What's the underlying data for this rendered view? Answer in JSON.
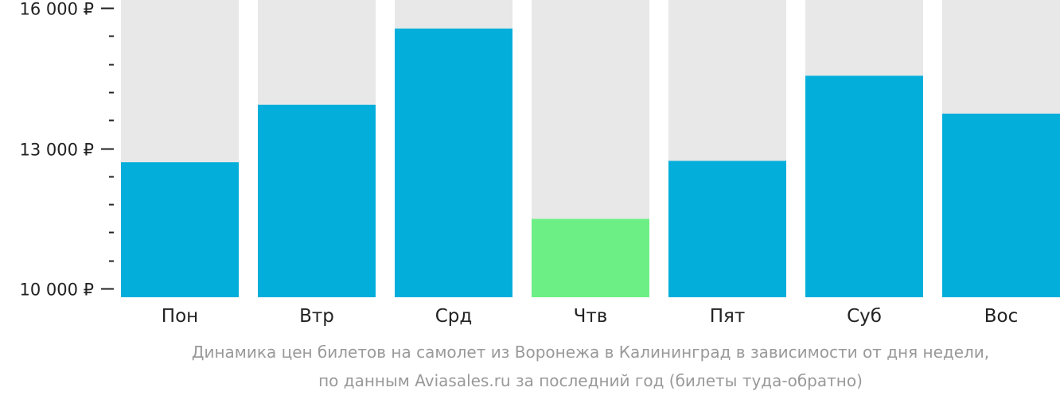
{
  "chart_data": {
    "type": "bar",
    "categories": [
      "Пон",
      "Втр",
      "Срд",
      "Чтв",
      "Пят",
      "Суб",
      "Вос"
    ],
    "values": [
      12700,
      13930,
      15560,
      11490,
      12730,
      14550,
      13740
    ],
    "highlight_index": 3,
    "yticks": [
      {
        "value": 10000,
        "label": "10 000 ₽"
      },
      {
        "value": 13000,
        "label": "13 000 ₽"
      },
      {
        "value": 16000,
        "label": "16 000 ₽"
      }
    ],
    "minor_tick_step": 600,
    "ylim": [
      9850,
      16200
    ],
    "title": "",
    "xlabel": "",
    "ylabel": ""
  },
  "caption": {
    "line1": "Динамика цен билетов на самолет из Воронежа в Калининград в зависимости от дня недели,",
    "line2": "по данным Aviasales.ru за последний год (билеты туда-обратно)"
  },
  "colors": {
    "bar": "#03aedb",
    "bar_highlight": "#6cf086",
    "track": "#e8e8e8",
    "axis": "#222222",
    "caption": "#999999"
  }
}
